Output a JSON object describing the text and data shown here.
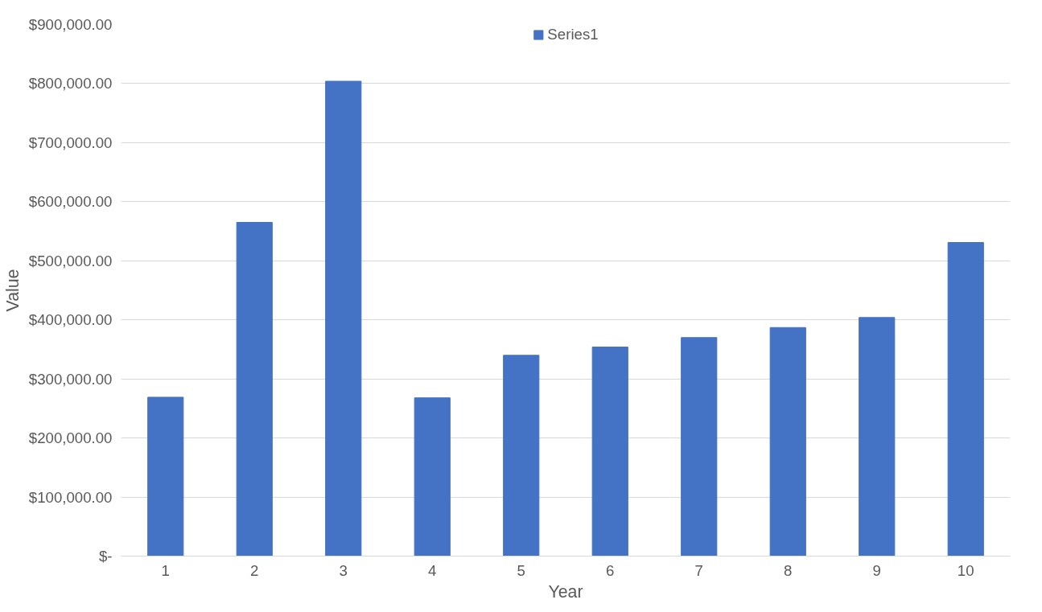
{
  "chart_data": {
    "type": "bar",
    "xlabel": "Year",
    "ylabel": "Value",
    "categories": [
      "1",
      "2",
      "3",
      "4",
      "5",
      "6",
      "7",
      "8",
      "9",
      "10"
    ],
    "series": [
      {
        "name": "Series1",
        "color": "#4472c4",
        "values": [
          269000,
          565000,
          804000,
          268000,
          340000,
          354000,
          370000,
          387000,
          404000,
          531000
        ]
      }
    ],
    "ylim": [
      0,
      900000
    ],
    "yticks": [
      {
        "value": 0,
        "label": "$-"
      },
      {
        "value": 100000,
        "label": "$100,000.00"
      },
      {
        "value": 200000,
        "label": "$200,000.00"
      },
      {
        "value": 300000,
        "label": "$300,000.00"
      },
      {
        "value": 400000,
        "label": "$400,000.00"
      },
      {
        "value": 500000,
        "label": "$500,000.00"
      },
      {
        "value": 600000,
        "label": "$600,000.00"
      },
      {
        "value": 700000,
        "label": "$700,000.00"
      },
      {
        "value": 800000,
        "label": "$800,000.00"
      },
      {
        "value": 900000,
        "label": "$900,000.00"
      }
    ],
    "grid": "y",
    "legend": "top"
  }
}
